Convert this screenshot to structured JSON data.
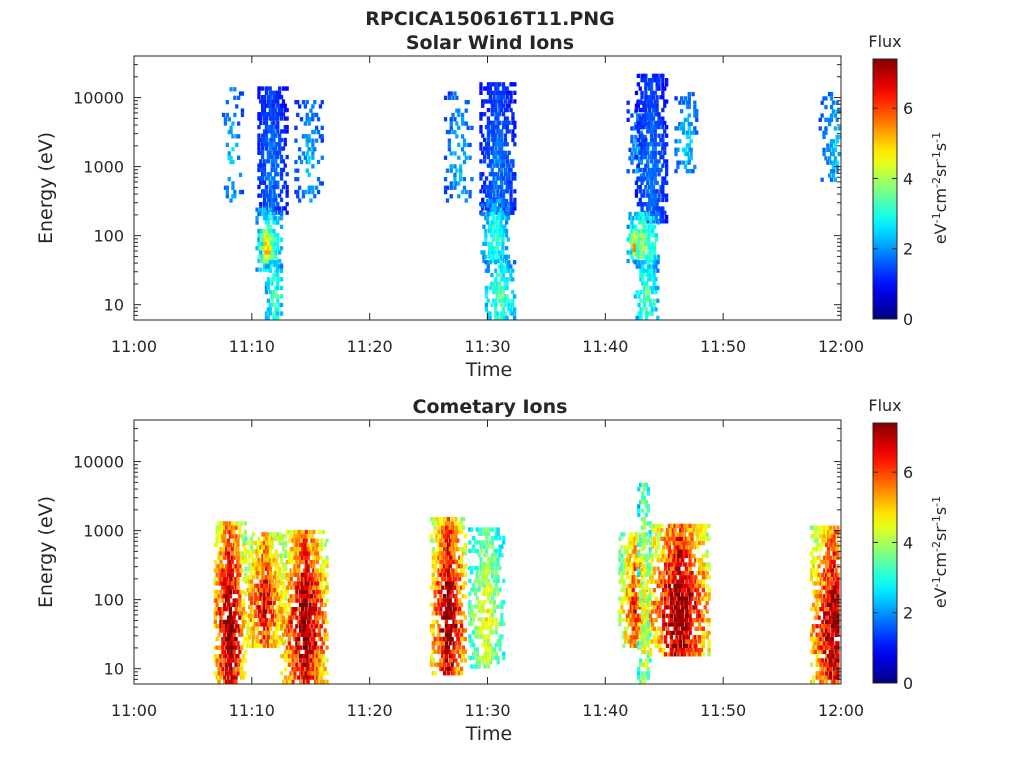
{
  "figure": {
    "title": "RPCICA150616T11.PNG"
  },
  "colorbar": {
    "label": "Flux",
    "unit_parts": [
      {
        "text": "eV",
        "sup": false
      },
      {
        "text": "-1",
        "sup": true
      },
      {
        "text": "cm",
        "sup": false
      },
      {
        "text": "-2",
        "sup": true
      },
      {
        "text": "sr",
        "sup": false
      },
      {
        "text": "-1",
        "sup": true
      },
      {
        "text": "s",
        "sup": false
      },
      {
        "text": "-1",
        "sup": true
      }
    ],
    "ticks": [
      "0",
      "2",
      "4",
      "6"
    ],
    "range": [
      0,
      7.4
    ],
    "colormap": "jet"
  },
  "chart_data": [
    {
      "type": "heatmap",
      "title": "Solar Wind Ions",
      "xlabel": "Time",
      "ylabel": "Energy (eV)",
      "x_ticks": [
        "11:00",
        "11:10",
        "11:20",
        "11:30",
        "11:40",
        "11:50",
        "12:00"
      ],
      "x_range_min": [
        0,
        60
      ],
      "y_ticks": [
        "10",
        "100",
        "1000",
        "10000"
      ],
      "y_scale": "log",
      "y_range": [
        6,
        40000
      ],
      "z_range": [
        0,
        7.4
      ],
      "blobs": [
        {
          "t": 8.2,
          "e_min": 300,
          "e_max": 13000,
          "peak": 2.3,
          "w": 0.9,
          "density": 0.28
        },
        {
          "t": 11.6,
          "e_min": 200,
          "e_max": 13000,
          "peak": 1.7,
          "w": 1.3,
          "density": 0.8
        },
        {
          "t": 11.4,
          "e_min": 30,
          "e_max": 250,
          "peak": 3.2,
          "w": 1.1,
          "density": 0.75
        },
        {
          "t": 11.1,
          "e_min": 40,
          "e_max": 120,
          "peak": 4.9,
          "w": 0.6,
          "density": 0.9
        },
        {
          "t": 11.8,
          "e_min": 6,
          "e_max": 40,
          "peak": 3.3,
          "w": 0.7,
          "density": 0.7
        },
        {
          "t": 14.8,
          "e_min": 300,
          "e_max": 9000,
          "peak": 2.2,
          "w": 1.2,
          "density": 0.35
        },
        {
          "t": 27.5,
          "e_min": 300,
          "e_max": 12000,
          "peak": 2.2,
          "w": 1.2,
          "density": 0.3
        },
        {
          "t": 30.8,
          "e_min": 200,
          "e_max": 15000,
          "peak": 1.7,
          "w": 1.5,
          "density": 0.8
        },
        {
          "t": 30.6,
          "e_min": 40,
          "e_max": 300,
          "peak": 3.0,
          "w": 1.2,
          "density": 0.7
        },
        {
          "t": 30.9,
          "e_min": 6,
          "e_max": 40,
          "peak": 3.3,
          "w": 1.3,
          "density": 0.65
        },
        {
          "t": 42.6,
          "e_min": 600,
          "e_max": 9000,
          "peak": 2.1,
          "w": 0.8,
          "density": 0.35
        },
        {
          "t": 43.8,
          "e_min": 150,
          "e_max": 20000,
          "peak": 1.7,
          "w": 1.3,
          "density": 0.8
        },
        {
          "t": 43.1,
          "e_min": 40,
          "e_max": 200,
          "peak": 3.6,
          "w": 1.3,
          "density": 0.8
        },
        {
          "t": 42.3,
          "e_min": 50,
          "e_max": 110,
          "peak": 5.1,
          "w": 0.3,
          "density": 0.9
        },
        {
          "t": 43.4,
          "e_min": 6,
          "e_max": 40,
          "peak": 3.4,
          "w": 1.0,
          "density": 0.75
        },
        {
          "t": 46.8,
          "e_min": 800,
          "e_max": 12000,
          "peak": 2.3,
          "w": 1.1,
          "density": 0.4
        },
        {
          "t": 59.5,
          "e_min": 600,
          "e_max": 12000,
          "peak": 2.3,
          "w": 1.4,
          "density": 0.3
        }
      ]
    },
    {
      "type": "heatmap",
      "title": "Cometary Ions",
      "xlabel": "Time",
      "ylabel": "Energy (eV)",
      "x_ticks": [
        "11:00",
        "11:10",
        "11:20",
        "11:30",
        "11:40",
        "11:50",
        "12:00"
      ],
      "x_range_min": [
        0,
        60
      ],
      "y_ticks": [
        "10",
        "100",
        "1000",
        "10000"
      ],
      "y_scale": "log",
      "y_range": [
        6,
        40000
      ],
      "z_range": [
        0,
        7.4
      ],
      "blobs": [
        {
          "t": 8.0,
          "e_min": 6,
          "e_max": 1200,
          "peak": 7.2,
          "w": 1.4,
          "density": 0.85
        },
        {
          "t": 11.0,
          "e_min": 20,
          "e_max": 900,
          "peak": 6.3,
          "w": 1.8,
          "density": 0.85
        },
        {
          "t": 14.4,
          "e_min": 6,
          "e_max": 1000,
          "peak": 7.1,
          "w": 2.0,
          "density": 0.85
        },
        {
          "t": 26.6,
          "e_min": 8,
          "e_max": 1500,
          "peak": 7.2,
          "w": 1.5,
          "density": 0.85
        },
        {
          "t": 29.8,
          "e_min": 10,
          "e_max": 1000,
          "peak": 4.4,
          "w": 1.6,
          "density": 0.6
        },
        {
          "t": 42.4,
          "e_min": 20,
          "e_max": 900,
          "peak": 5.9,
          "w": 1.3,
          "density": 0.8
        },
        {
          "t": 43.2,
          "e_min": 6,
          "e_max": 4500,
          "peak": 4.5,
          "w": 0.5,
          "density": 0.6
        },
        {
          "t": 46.2,
          "e_min": 15,
          "e_max": 1200,
          "peak": 7.3,
          "w": 2.5,
          "density": 0.85
        },
        {
          "t": 59.4,
          "e_min": 6,
          "e_max": 1100,
          "peak": 7.0,
          "w": 2.2,
          "density": 0.85
        }
      ]
    }
  ]
}
